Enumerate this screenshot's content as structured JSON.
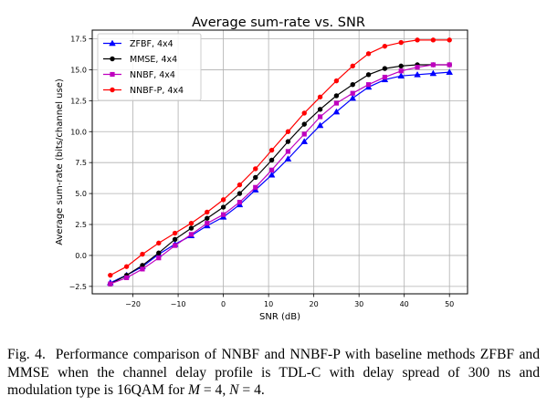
{
  "chart_data": {
    "type": "line",
    "title": "Average sum-rate vs. SNR",
    "xlabel": "SNR (dB)",
    "ylabel": "Average sum-rate (bits/channel use)",
    "xlim": [
      -29,
      54
    ],
    "ylim": [
      -3.1,
      18.2
    ],
    "xticks": [
      -20,
      -10,
      0,
      10,
      20,
      30,
      40,
      50
    ],
    "yticks": [
      -2.5,
      0.0,
      2.5,
      5.0,
      7.5,
      10.0,
      12.5,
      15.0,
      17.5
    ],
    "ytick_labels": [
      "−2.5",
      "0.0",
      "2.5",
      "5.0",
      "7.5",
      "10.0",
      "12.5",
      "15.0",
      "17.5"
    ],
    "xtick_labels": [
      "−20",
      "−10",
      "0",
      "10",
      "20",
      "30",
      "40",
      "50"
    ],
    "grid": true,
    "legend_position": "top-left",
    "x": [
      -25,
      -21.4,
      -17.9,
      -14.3,
      -10.7,
      -7.1,
      -3.6,
      0,
      3.6,
      7.1,
      10.7,
      14.3,
      17.9,
      21.4,
      25,
      28.6,
      32.1,
      35.7,
      39.3,
      42.9,
      46.4,
      50
    ],
    "series": [
      {
        "name": "ZFBF, 4x4",
        "color": "#0000ff",
        "marker": "triangle",
        "values": [
          -2.2,
          -1.6,
          -0.9,
          0.1,
          0.9,
          1.6,
          2.4,
          3.1,
          4.1,
          5.3,
          6.5,
          7.8,
          9.2,
          10.5,
          11.6,
          12.7,
          13.6,
          14.2,
          14.5,
          14.6,
          14.7,
          14.8
        ]
      },
      {
        "name": "MMSE, 4x4",
        "color": "#000000",
        "marker": "circle",
        "values": [
          -2.3,
          -1.6,
          -0.8,
          0.2,
          1.3,
          2.2,
          3.0,
          3.9,
          5.0,
          6.3,
          7.7,
          9.2,
          10.6,
          11.8,
          12.9,
          13.8,
          14.6,
          15.1,
          15.3,
          15.4,
          15.4,
          15.4
        ]
      },
      {
        "name": "NNBF, 4x4",
        "color": "#bf00bf",
        "marker": "square",
        "values": [
          -2.3,
          -1.8,
          -1.1,
          -0.2,
          0.8,
          1.7,
          2.6,
          3.3,
          4.3,
          5.5,
          6.9,
          8.4,
          9.8,
          11.2,
          12.3,
          13.1,
          13.8,
          14.4,
          14.9,
          15.2,
          15.4,
          15.4
        ]
      },
      {
        "name": "NNBF-P, 4x4",
        "color": "#ff0000",
        "marker": "circle",
        "values": [
          -1.6,
          -0.9,
          0.1,
          1.0,
          1.8,
          2.6,
          3.5,
          4.5,
          5.7,
          7.0,
          8.5,
          10.0,
          11.5,
          12.8,
          14.1,
          15.3,
          16.3,
          16.9,
          17.2,
          17.4,
          17.4,
          17.4
        ]
      }
    ]
  },
  "caption": {
    "label": "Fig. 4.",
    "text_part1": "Performance comparison of NNBF and NNBF-P with baseline methods ZFBF and MMSE when the channel delay profile is TDL-C with delay spread of 300 ns and modulation type is 16QAM for ",
    "var_m": "M",
    "eq_m": " = 4, ",
    "var_n": "N",
    "eq_n": " = 4."
  }
}
